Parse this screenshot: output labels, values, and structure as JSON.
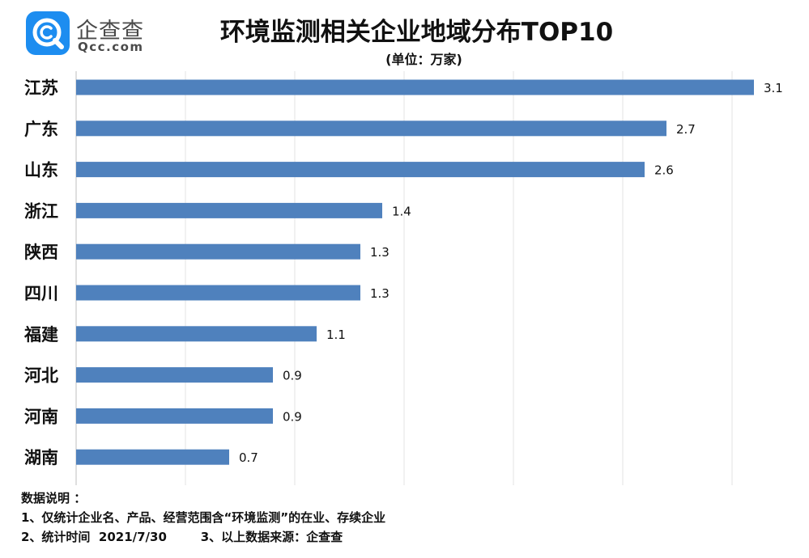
{
  "logo": {
    "name_cn": "企查查",
    "name_en": "Qcc.com",
    "icon": "qcc-logo-icon",
    "color": "#1d8df0"
  },
  "chart_data": {
    "type": "bar",
    "orientation": "horizontal",
    "title": "环境监测相关企业地域分布TOP10",
    "subtitle": "(单位：万家)",
    "categories": [
      "江苏",
      "广东",
      "山东",
      "浙江",
      "陕西",
      "四川",
      "福建",
      "河北",
      "河南",
      "湖南"
    ],
    "values": [
      3.1,
      2.7,
      2.6,
      1.4,
      1.3,
      1.3,
      1.1,
      0.9,
      0.9,
      0.7
    ],
    "value_labels": [
      "3.1",
      "2.7",
      "2.6",
      "1.4",
      "1.3",
      "1.3",
      "1.1",
      "0.9",
      "0.9",
      "0.7"
    ],
    "xlim": [
      0,
      3
    ],
    "bar_color": "#4f81bd",
    "grid": true
  },
  "notes": {
    "heading": "数据说明 ：",
    "line1": "1、仅统计企业名、产品、经营范围含“环境监测”的在业、存续企业",
    "line2a": "2、统计时间  2021/7/30",
    "line2b": "3、以上数据来源：企查查"
  }
}
